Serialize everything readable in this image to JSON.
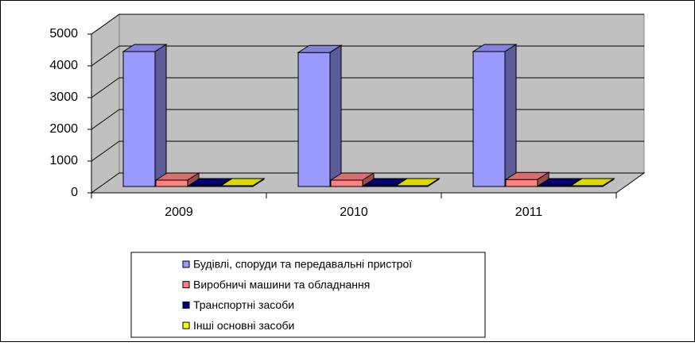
{
  "chart_data": {
    "type": "bar3d",
    "categories": [
      "2009",
      "2010",
      "2011"
    ],
    "series": [
      {
        "name": "Будівлі, споруди та передавальні пристрої",
        "color": "#9999ff",
        "values": [
          4350,
          4320,
          4350
        ]
      },
      {
        "name": "Виробничі машини та обладнання",
        "color": "#ff8080",
        "values": [
          300,
          300,
          320
        ]
      },
      {
        "name": "Транспортні засоби",
        "color": "#000080",
        "values": [
          100,
          100,
          120
        ]
      },
      {
        "name": "Інші основні засоби",
        "color": "#ffff00",
        "values": [
          10,
          10,
          10
        ]
      }
    ],
    "ylim": [
      0,
      5000
    ],
    "yticks": [
      0,
      1000,
      2000,
      3000,
      4000,
      5000
    ],
    "grid": true
  }
}
